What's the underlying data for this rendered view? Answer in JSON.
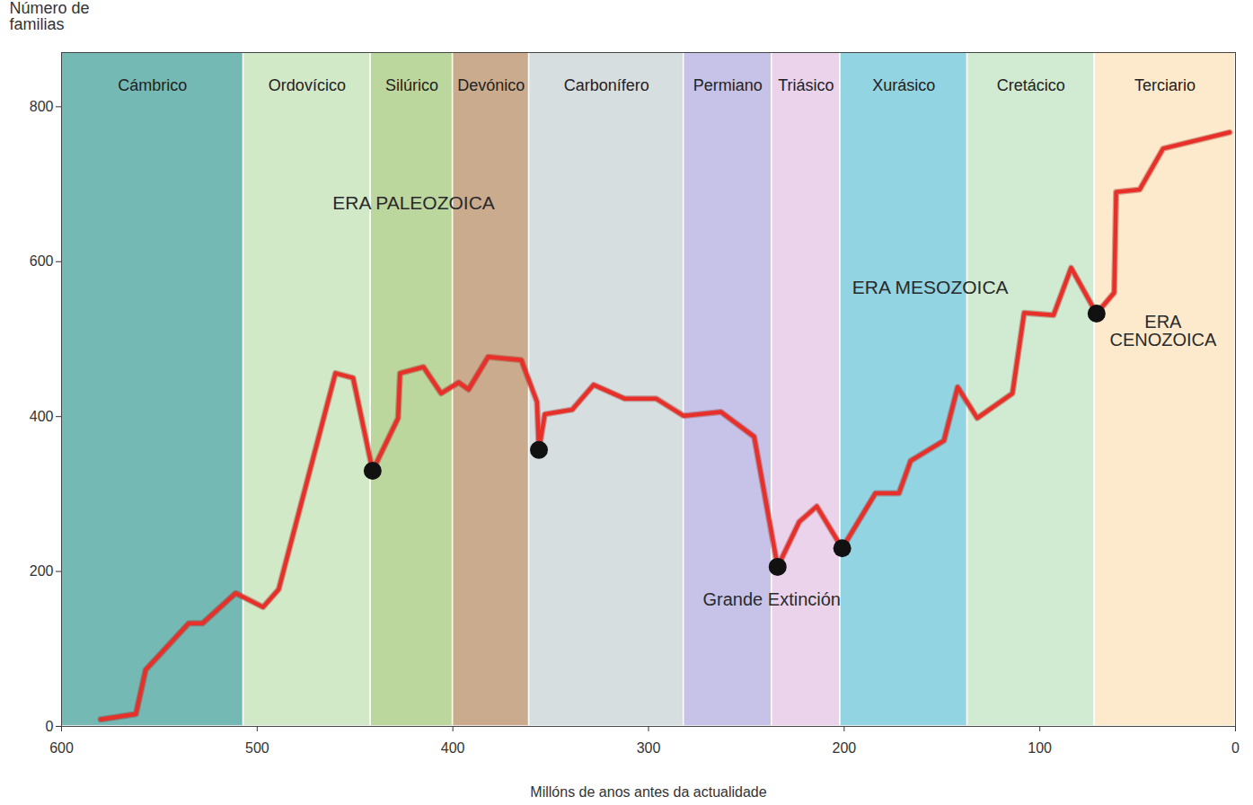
{
  "chart_data": {
    "type": "line",
    "y_label": "Número de familias",
    "x_label": "Millóns de anos antes da actualidade",
    "color": "#e8302a",
    "x": [
      580,
      562,
      557,
      535,
      528,
      511,
      497,
      489,
      460,
      451,
      441,
      428,
      427,
      415,
      406,
      397,
      392,
      382,
      365,
      357,
      356,
      353,
      339,
      328,
      312,
      296,
      282,
      263,
      246,
      234,
      223,
      214,
      201,
      184,
      172,
      166,
      149,
      142,
      132,
      114,
      108,
      93,
      84,
      71,
      62,
      61,
      49,
      37,
      3
    ],
    "values": [
      9,
      16,
      73,
      133,
      133,
      172,
      154,
      177,
      456,
      450,
      330,
      398,
      456,
      464,
      430,
      444,
      435,
      477,
      473,
      419,
      357,
      403,
      409,
      441,
      423,
      423,
      401,
      406,
      374,
      206,
      264,
      284,
      230,
      301,
      301,
      343,
      369,
      438,
      398,
      430,
      534,
      531,
      592,
      533,
      560,
      690,
      693,
      746,
      767
    ],
    "extinctions": {
      "x": [
        441,
        356,
        234,
        201,
        71
      ],
      "values": [
        330,
        357,
        206,
        230,
        533
      ]
    },
    "periods": [
      {
        "name": "Cámbrico",
        "start": 600,
        "end": 507,
        "color": "#74b9b4"
      },
      {
        "name": "Ordovícico",
        "start": 507,
        "end": 442,
        "color": "#d2e9c8"
      },
      {
        "name": "Silúrico",
        "start": 442,
        "end": 400,
        "color": "#bcd79e"
      },
      {
        "name": "Devónico",
        "start": 400,
        "end": 361,
        "color": "#cbab8e"
      },
      {
        "name": "Carbonífero",
        "start": 361,
        "end": 282,
        "color": "#d6dedf"
      },
      {
        "name": "Permiano",
        "start": 282,
        "end": 237,
        "color": "#c6c2e8"
      },
      {
        "name": "Triásico",
        "start": 237,
        "end": 202,
        "color": "#ebd3ec"
      },
      {
        "name": "Xurásico",
        "start": 202,
        "end": 137,
        "color": "#92d4e1"
      },
      {
        "name": "Cretácico",
        "start": 137,
        "end": 72,
        "color": "#d0ebd1"
      },
      {
        "name": "Terciario",
        "start": 72,
        "end": 0,
        "color": "#fde9cb"
      }
    ],
    "annotations": [
      {
        "text": "ERA PALEOZOICA",
        "x": 420,
        "y": 675
      },
      {
        "text": "ERA MESOZOICA",
        "x": 156,
        "y": 566
      },
      {
        "text": "ERA CENOZOICA",
        "x": 37,
        "y": 510
      },
      {
        "text": "Grande Extinción",
        "x": 237,
        "y": 163
      }
    ],
    "xlim": [
      600,
      0
    ],
    "xticks": [
      600,
      500,
      400,
      300,
      200,
      100,
      0
    ],
    "ylim": [
      0,
      870
    ],
    "yticks": [
      0,
      200,
      400,
      600,
      800
    ],
    "grid": false
  }
}
